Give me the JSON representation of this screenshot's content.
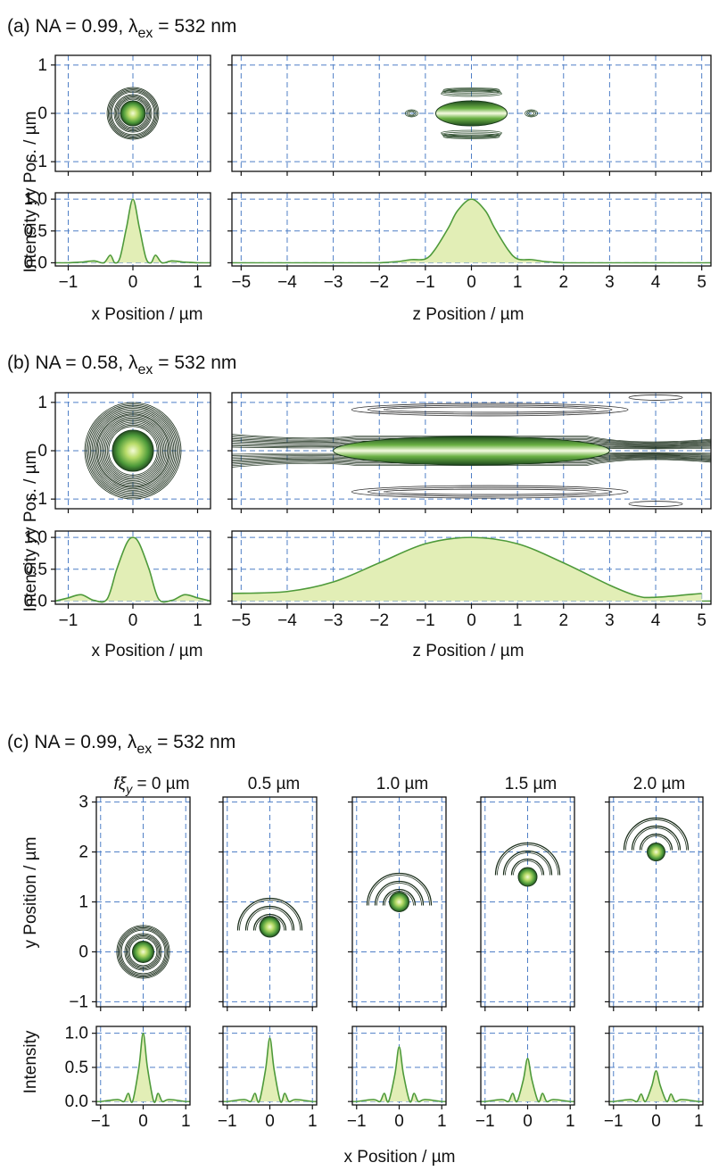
{
  "panels": {
    "a": {
      "label": "(a)",
      "na_text": "NA = 0.99, λ",
      "sub": "ex",
      "lambda_text": " = 532 nm"
    },
    "b": {
      "label": "(b)",
      "na_text": "NA = 0.58, λ",
      "sub": "ex",
      "lambda_text": " = 532 nm"
    },
    "c": {
      "label": "(c)",
      "na_text": "NA = 0.99, λ",
      "sub": "ex",
      "lambda_text": " = 532 nm",
      "first_column_prefix": "fξ",
      "first_column_sub": "y",
      "first_column_value": " = 0 µm",
      "column_titles": [
        "0.5 µm",
        "1.0 µm",
        "1.5 µm",
        "2.0 µm"
      ]
    }
  },
  "axes": {
    "ylabel_ab_a": "Intensity",
    "ylabel_ab_b": "y Pos.  / µm",
    "xlabel_x": "x Position / µm",
    "xlabel_z": "z Position / µm",
    "ylabel_c_top": "y Position / µm",
    "ylabel_c_bottom": "Intensity",
    "xlabel_c": "x Position / µm"
  },
  "colors": {
    "fill": "#e2eeb6",
    "line": "#4e9a3a",
    "grid": "#4f7fc6",
    "spot_center": "#f4fbd6",
    "spot_edge": "#2f6e2a"
  },
  "chart_data": [
    {
      "id": "a-xy",
      "type": "heatmap",
      "title": "",
      "xlabel": "",
      "ylabel": "y Pos.  / µm",
      "xlim": [
        -1.2,
        1.2
      ],
      "ylim": [
        -1.2,
        1.2
      ],
      "yticks": [
        "-1",
        "0",
        "1"
      ],
      "grid": true,
      "spot_center": [
        0,
        0
      ],
      "ring_radii": [
        0.33,
        0.47
      ]
    },
    {
      "id": "a-zy",
      "type": "heatmap",
      "title": "",
      "xlabel": "",
      "ylabel": "",
      "xlim": [
        -5,
        5
      ],
      "ylim": [
        -1.2,
        1.2
      ],
      "grid": true,
      "spot_center": [
        0,
        0
      ],
      "lobe_z": [
        -1.3,
        1.3
      ],
      "side_lobe_y": [
        -0.4,
        0.4
      ]
    },
    {
      "id": "a-x-profile",
      "type": "area",
      "xlabel": "x Position / µm",
      "ylabel": "Intensity",
      "xlim": [
        -1.2,
        1.2
      ],
      "ylim": [
        -0.05,
        1.1
      ],
      "xticks": [
        "-1",
        "0",
        "1"
      ],
      "yticks": [
        "0.0",
        "0.5",
        "1.0"
      ],
      "x": [
        -1.0,
        -0.8,
        -0.6,
        -0.45,
        -0.35,
        -0.28,
        -0.2,
        -0.1,
        0.0,
        0.1,
        0.2,
        0.28,
        0.35,
        0.45,
        0.6,
        0.8,
        1.0
      ],
      "values": [
        0.0,
        0.01,
        0.03,
        0.0,
        0.12,
        0.0,
        0.08,
        0.55,
        1.0,
        0.55,
        0.08,
        0.0,
        0.12,
        0.0,
        0.03,
        0.01,
        0.0
      ]
    },
    {
      "id": "a-z-profile",
      "type": "area",
      "xlabel": "z Position / µm",
      "ylabel": "",
      "xlim": [
        -5.2,
        5.2
      ],
      "ylim": [
        -0.05,
        1.1
      ],
      "xticks": [
        "-5",
        "-4",
        "-3",
        "-2",
        "-1",
        "0",
        "1",
        "2",
        "3",
        "4",
        "5"
      ],
      "x": [
        -2.0,
        -1.6,
        -1.3,
        -1.0,
        -0.8,
        -0.5,
        -0.3,
        0.0,
        0.3,
        0.5,
        0.8,
        1.0,
        1.3,
        1.6,
        2.0
      ],
      "values": [
        0.0,
        0.02,
        0.05,
        0.06,
        0.2,
        0.55,
        0.82,
        1.0,
        0.82,
        0.55,
        0.2,
        0.06,
        0.05,
        0.02,
        0.0
      ]
    },
    {
      "id": "b-xy",
      "type": "heatmap",
      "xlim": [
        -1.2,
        1.2
      ],
      "ylim": [
        -1.2,
        1.2
      ],
      "yticks": [
        "-1",
        "0",
        "1"
      ],
      "grid": true,
      "spot_center": [
        0,
        0
      ],
      "ring_radii": [
        0.6,
        0.85
      ]
    },
    {
      "id": "b-zy",
      "type": "heatmap",
      "xlim": [
        -5,
        5
      ],
      "ylim": [
        -1.2,
        1.2
      ],
      "grid": true,
      "spot_center": [
        0,
        0
      ],
      "spot_half_length_z": 3.0,
      "side_lobe_y": [
        -0.9,
        0.9
      ]
    },
    {
      "id": "b-x-profile",
      "type": "area",
      "xlabel": "x Position / µm",
      "ylabel": "Intensity",
      "xlim": [
        -1.2,
        1.2
      ],
      "ylim": [
        -0.05,
        1.1
      ],
      "xticks": [
        "-1",
        "0",
        "1"
      ],
      "yticks": [
        "0.0",
        "0.5",
        "1.0"
      ],
      "x": [
        -1.2,
        -1.0,
        -0.8,
        -0.6,
        -0.4,
        -0.25,
        -0.1,
        0.0,
        0.1,
        0.25,
        0.4,
        0.6,
        0.8,
        1.0,
        1.2
      ],
      "values": [
        0.0,
        0.05,
        0.1,
        0.01,
        0.03,
        0.5,
        0.9,
        1.0,
        0.9,
        0.5,
        0.03,
        0.01,
        0.1,
        0.05,
        0.0
      ]
    },
    {
      "id": "b-z-profile",
      "type": "area",
      "xlabel": "z Position / µm",
      "ylabel": "",
      "xlim": [
        -5.2,
        5.2
      ],
      "ylim": [
        -0.05,
        1.1
      ],
      "xticks": [
        "-5",
        "-4",
        "-3",
        "-2",
        "-1",
        "0",
        "1",
        "2",
        "3",
        "4",
        "5"
      ],
      "x": [
        -5.2,
        -4.0,
        -3.0,
        -2.0,
        -1.0,
        0.0,
        1.0,
        2.0,
        3.0,
        3.6,
        4.0,
        5.0
      ],
      "values": [
        0.12,
        0.15,
        0.3,
        0.6,
        0.9,
        1.0,
        0.9,
        0.6,
        0.25,
        0.08,
        0.06,
        0.12
      ]
    },
    {
      "id": "c-xy",
      "type": "heatmap",
      "xlabel": "",
      "ylabel": "y Position / µm",
      "xlim": [
        -1.1,
        1.1
      ],
      "ylim": [
        -1.1,
        3.1
      ],
      "xticks": [],
      "yticks": [
        "-1",
        "0",
        "1",
        "2",
        "3"
      ],
      "grid": true,
      "spot_y": [
        0.0,
        0.5,
        1.0,
        1.5,
        2.0
      ]
    },
    {
      "id": "c-x-profiles",
      "type": "line",
      "xlabel": "x Position / µm",
      "ylabel": "Intensity",
      "xlim": [
        -1.1,
        1.1
      ],
      "ylim": [
        -0.05,
        1.1
      ],
      "xticks": [
        "-1",
        "0",
        "1"
      ],
      "yticks": [
        "0.0",
        "0.5",
        "1.0"
      ],
      "x": [
        -1.0,
        -0.6,
        -0.45,
        -0.35,
        -0.25,
        -0.1,
        0.0,
        0.1,
        0.25,
        0.35,
        0.45,
        0.6,
        1.0
      ],
      "series": [
        {
          "peak": 1.0,
          "values": [
            0.0,
            0.03,
            0.0,
            0.12,
            0.0,
            0.5,
            1.0,
            0.5,
            0.0,
            0.12,
            0.0,
            0.03,
            0.0
          ]
        },
        {
          "peak": 0.93,
          "values": [
            0.0,
            0.03,
            0.0,
            0.12,
            0.0,
            0.47,
            0.93,
            0.47,
            0.0,
            0.12,
            0.0,
            0.03,
            0.0
          ]
        },
        {
          "peak": 0.8,
          "values": [
            0.0,
            0.03,
            0.0,
            0.12,
            0.0,
            0.4,
            0.8,
            0.4,
            0.0,
            0.12,
            0.0,
            0.03,
            0.0
          ]
        },
        {
          "peak": 0.63,
          "values": [
            0.0,
            0.03,
            0.0,
            0.12,
            0.0,
            0.32,
            0.63,
            0.32,
            0.0,
            0.12,
            0.0,
            0.03,
            0.0
          ]
        },
        {
          "peak": 0.45,
          "values": [
            0.0,
            0.03,
            0.0,
            0.11,
            0.0,
            0.23,
            0.45,
            0.23,
            0.0,
            0.11,
            0.0,
            0.03,
            0.0
          ]
        }
      ]
    }
  ]
}
